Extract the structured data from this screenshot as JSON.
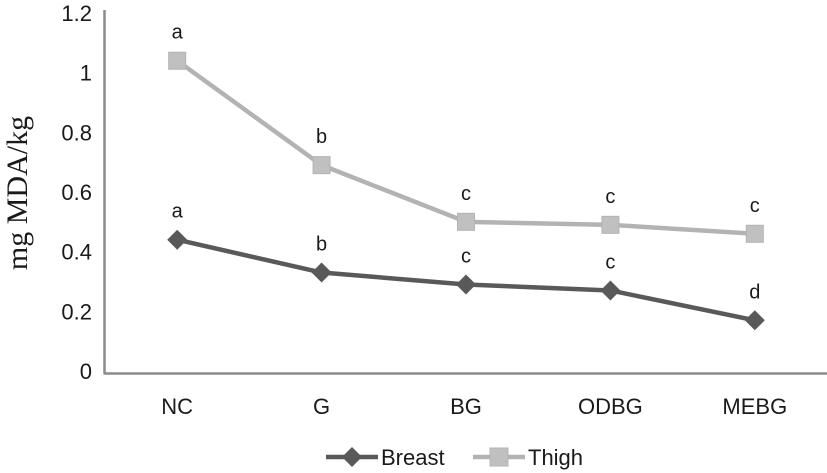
{
  "chart_data": {
    "type": "line",
    "title": "",
    "xlabel": "",
    "ylabel": "mg MDA/kg",
    "categories": [
      "NC",
      "G",
      "BG",
      "ODBG",
      "MEBG"
    ],
    "series": [
      {
        "name": "Thigh",
        "values": [
          1.04,
          0.69,
          0.5,
          0.49,
          0.46
        ],
        "letters": [
          "a",
          "b",
          "c",
          "c",
          "c"
        ],
        "marker": "square",
        "line_color": "#b3b3b3",
        "marker_color": "#c0c0c0"
      },
      {
        "name": "Breast",
        "values": [
          0.44,
          0.33,
          0.29,
          0.27,
          0.17
        ],
        "letters": [
          "a",
          "b",
          "c",
          "c",
          "d"
        ],
        "marker": "diamond",
        "line_color": "#595959",
        "marker_color": "#595959"
      }
    ],
    "ylim": [
      0,
      1.2
    ],
    "y_tick_values": [
      0,
      0.2,
      0.4,
      0.6,
      0.8,
      1,
      1.2
    ],
    "y_tick_labels": [
      "0",
      "0.2",
      "0.4",
      "0.6",
      "0.8",
      "1",
      "1.2"
    ],
    "grid": false,
    "legend_position": "bottom",
    "legend_order": [
      "Breast",
      "Thigh"
    ],
    "axis_color": "#8c8c8c",
    "text_color": "#1a1a1a"
  }
}
